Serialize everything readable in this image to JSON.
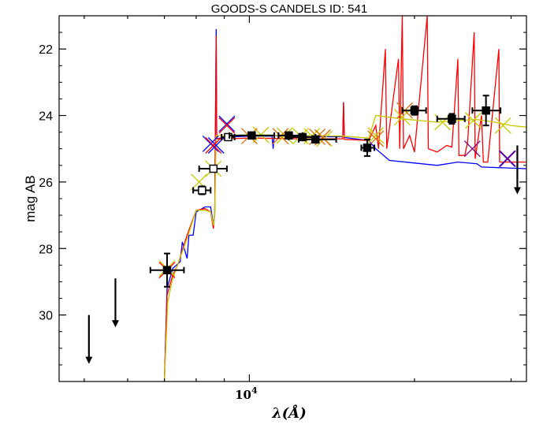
{
  "chart_data": {
    "type": "scatter",
    "title": "GOODS-S CANDELS ID: 541",
    "xlabel": "λ(Å)",
    "ylabel": "mag AB",
    "x_scale": "log",
    "xlim": [
      4500,
      32000
    ],
    "ylim": [
      32,
      21
    ],
    "x_ticks": [
      {
        "value": 10000,
        "label": "10",
        "exponent": "4"
      }
    ],
    "y_ticks": [
      22,
      24,
      26,
      28,
      30
    ],
    "grid": false,
    "legend": "none",
    "colors": {
      "model_blue": "#0000ff",
      "model_red": "#ff0000",
      "model_yellow": "#c8c800",
      "model_purple": "#800080",
      "model_orange": "#d96c00",
      "points": "#000000"
    },
    "series": [
      {
        "kind": "line",
        "color_key": "model_blue",
        "points": [
          [
            7000,
            32
          ],
          [
            7080,
            29.2
          ],
          [
            7250,
            28.6
          ],
          [
            7480,
            28.4
          ],
          [
            7550,
            27.8
          ],
          [
            7700,
            28.3
          ],
          [
            7760,
            27.6
          ],
          [
            7900,
            27.6
          ],
          [
            8000,
            26.9
          ],
          [
            8300,
            26.75
          ],
          [
            8500,
            26.75
          ],
          [
            8600,
            27.3
          ],
          [
            8650,
            26.9
          ],
          [
            8700,
            21.4
          ],
          [
            8720,
            24.7
          ],
          [
            9000,
            24.65
          ],
          [
            10000,
            24.62
          ],
          [
            11000,
            24.62
          ],
          [
            11050,
            25.0
          ],
          [
            11100,
            24.6
          ],
          [
            12500,
            24.62
          ],
          [
            13000,
            24.64
          ],
          [
            14800,
            24.64
          ],
          [
            14850,
            23.6
          ],
          [
            14900,
            24.66
          ],
          [
            16500,
            24.75
          ],
          [
            17000,
            25.0
          ],
          [
            18000,
            25.35
          ],
          [
            22000,
            25.5
          ],
          [
            24000,
            25.4
          ],
          [
            26000,
            25.45
          ],
          [
            26500,
            25.55
          ],
          [
            32000,
            25.6
          ]
        ]
      },
      {
        "kind": "line",
        "color_key": "model_red",
        "points": [
          [
            7000,
            32
          ],
          [
            7080,
            29.4
          ],
          [
            7250,
            28.8
          ],
          [
            7400,
            28.5
          ],
          [
            7700,
            27.6
          ],
          [
            8000,
            26.85
          ],
          [
            8300,
            26.8
          ],
          [
            8500,
            26.9
          ],
          [
            8600,
            27.4
          ],
          [
            8650,
            26.9
          ],
          [
            8700,
            21.6
          ],
          [
            8720,
            24.7
          ],
          [
            9000,
            24.7
          ],
          [
            10000,
            24.68
          ],
          [
            12500,
            24.7
          ],
          [
            14800,
            24.7
          ],
          [
            14850,
            23.6
          ],
          [
            14900,
            24.72
          ],
          [
            16500,
            24.75
          ],
          [
            17000,
            24.3
          ],
          [
            17200,
            25.0
          ],
          [
            17700,
            22.0
          ],
          [
            17800,
            25.0
          ],
          [
            18700,
            22.3
          ],
          [
            18800,
            25.0
          ],
          [
            19000,
            21.0
          ],
          [
            19100,
            25.0
          ],
          [
            19600,
            24.6
          ],
          [
            20000,
            25.1
          ],
          [
            21100,
            21.0
          ],
          [
            21200,
            25.0
          ],
          [
            22000,
            25.1
          ],
          [
            22900,
            24.9
          ],
          [
            23400,
            24.95
          ],
          [
            24000,
            22.3
          ],
          [
            24100,
            25.2
          ],
          [
            24700,
            25.2
          ],
          [
            25000,
            24.8
          ],
          [
            25700,
            21.5
          ],
          [
            25800,
            25.3
          ],
          [
            26500,
            24.0
          ],
          [
            26700,
            25.4
          ],
          [
            27200,
            25.4
          ],
          [
            28500,
            22.0
          ],
          [
            28600,
            25.4
          ],
          [
            32000,
            25.4
          ]
        ]
      },
      {
        "kind": "line",
        "color_key": "model_yellow",
        "points": [
          [
            7000,
            32
          ],
          [
            7100,
            29.6
          ],
          [
            7250,
            28.9
          ],
          [
            7700,
            27.7
          ],
          [
            8000,
            26.85
          ],
          [
            8300,
            26.85
          ],
          [
            8500,
            26.9
          ],
          [
            8600,
            27.3
          ],
          [
            8650,
            26.9
          ],
          [
            8700,
            24.6
          ],
          [
            9000,
            24.6
          ],
          [
            10000,
            24.58
          ],
          [
            12500,
            24.6
          ],
          [
            14800,
            24.62
          ],
          [
            16500,
            24.68
          ],
          [
            17000,
            24.0
          ],
          [
            18000,
            24.05
          ],
          [
            19000,
            24.1
          ],
          [
            22000,
            24.2
          ],
          [
            24000,
            24.15
          ],
          [
            26000,
            24.12
          ],
          [
            28000,
            24.2
          ],
          [
            30000,
            24.3
          ],
          [
            32000,
            24.35
          ]
        ]
      }
    ],
    "model_crosses": [
      {
        "color_key": "model_blue",
        "points": [
          [
            8500,
            24.85
          ],
          [
            8700,
            24.9
          ],
          [
            9100,
            24.25
          ],
          [
            29500,
            25.3
          ]
        ]
      },
      {
        "color_key": "model_red",
        "points": [
          [
            8600,
            24.9
          ],
          [
            9100,
            24.3
          ],
          [
            7080,
            28.65
          ]
        ]
      },
      {
        "color_key": "model_yellow",
        "points": [
          [
            7080,
            28.6
          ],
          [
            8100,
            26.0
          ],
          [
            8600,
            25.6
          ],
          [
            10500,
            24.58
          ],
          [
            11600,
            24.6
          ],
          [
            12400,
            24.62
          ],
          [
            13000,
            24.62
          ],
          [
            13700,
            24.7
          ],
          [
            17000,
            24.6
          ],
          [
            19000,
            24.05
          ],
          [
            22500,
            24.2
          ],
          [
            25600,
            24.15
          ],
          [
            29000,
            24.3
          ]
        ]
      },
      {
        "color_key": "model_orange",
        "points": [
          [
            10000,
            24.62
          ],
          [
            11400,
            24.62
          ],
          [
            13300,
            24.64
          ],
          [
            13600,
            24.66
          ],
          [
            17000,
            24.7
          ],
          [
            19200,
            23.85
          ]
        ]
      },
      {
        "color_key": "model_purple",
        "points": [
          [
            25500,
            25.0
          ],
          [
            29600,
            25.3
          ]
        ]
      }
    ],
    "detections": [
      {
        "x": 7080,
        "y": 28.65,
        "xerr": [
          6600,
          7600
        ],
        "yerr": 0.5,
        "filled": true
      },
      {
        "x": 8200,
        "y": 26.25,
        "xerr": [
          7900,
          8500
        ],
        "yerr": 0.12,
        "filled": false
      },
      {
        "x": 8600,
        "y": 25.6,
        "xerr": [
          8100,
          9100
        ],
        "yerr": 0.08,
        "filled": false
      },
      {
        "x": 9150,
        "y": 24.65,
        "xerr": [
          8900,
          9400
        ],
        "yerr": 0.04,
        "filled": false
      },
      {
        "x": 10100,
        "y": 24.6,
        "xerr": [
          9200,
          11100
        ],
        "yerr": 0.08,
        "filled": true
      },
      {
        "x": 11800,
        "y": 24.6,
        "xerr": [
          11300,
          12500
        ],
        "yerr": 0.05,
        "filled": true
      },
      {
        "x": 12500,
        "y": 24.65,
        "xerr": [
          11800,
          13200
        ],
        "yerr": 0.05,
        "filled": true
      },
      {
        "x": 13200,
        "y": 24.72,
        "xerr": [
          12300,
          14400
        ],
        "yerr": 0.07,
        "filled": true
      },
      {
        "x": 16400,
        "y": 24.97,
        "xerr": [
          16000,
          16900
        ],
        "yerr": 0.25,
        "filled": true
      },
      {
        "x": 20000,
        "y": 23.85,
        "xerr": [
          19000,
          21000
        ],
        "yerr": 0.13,
        "filled": true
      },
      {
        "x": 23400,
        "y": 24.1,
        "xerr": [
          22000,
          24700
        ],
        "yerr": 0.15,
        "filled": true
      },
      {
        "x": 27000,
        "y": 23.85,
        "xerr": [
          25500,
          28700
        ],
        "yerr": 0.45,
        "filled": true
      }
    ],
    "upper_limits": [
      {
        "x": 5100,
        "y": 30.0
      },
      {
        "x": 5700,
        "y": 28.9
      },
      {
        "x": 30800,
        "y": 24.9
      }
    ]
  }
}
